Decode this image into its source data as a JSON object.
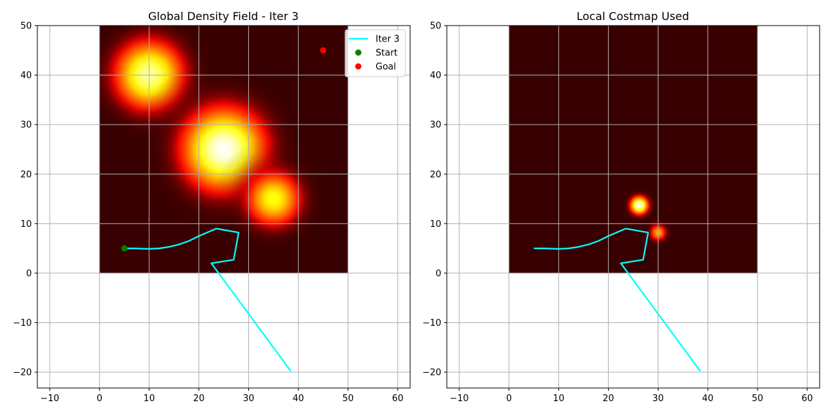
{
  "chart_data": [
    {
      "type": "heatmap",
      "title": "Global Density Field - Iter 3",
      "xlim": [
        -12.5,
        62.5
      ],
      "ylim": [
        -23.2,
        50
      ],
      "x_ticks": [
        -10,
        0,
        10,
        20,
        30,
        40,
        50,
        60
      ],
      "y_ticks": [
        -20,
        -10,
        0,
        10,
        20,
        30,
        40,
        50
      ],
      "x_tick_labels": [
        "−10",
        "0",
        "10",
        "20",
        "30",
        "40",
        "50",
        "60"
      ],
      "y_tick_labels": [
        "−20",
        "−10",
        "0",
        "10",
        "20",
        "30",
        "40",
        "50"
      ],
      "grid": true,
      "colormap": "hot",
      "field_extent": {
        "x": [
          0,
          50
        ],
        "y": [
          0,
          50
        ]
      },
      "field_blobs": [
        {
          "x": 10,
          "y": 40,
          "peak": 0.9,
          "sigma": 5
        },
        {
          "x": 25,
          "y": 25,
          "peak": 1.0,
          "sigma": 6
        },
        {
          "x": 35,
          "y": 15,
          "peak": 0.75,
          "sigma": 4
        }
      ],
      "series": [
        {
          "name": "Iter 3",
          "type": "line",
          "color": "#00ffff",
          "x": [
            5,
            7,
            10,
            12,
            14,
            16,
            18,
            20,
            23.5,
            28,
            27,
            22.5,
            38.5
          ],
          "y": [
            5,
            5,
            4.9,
            5,
            5.3,
            5.8,
            6.5,
            7.5,
            9,
            8.2,
            2.7,
            2,
            -19.8
          ]
        },
        {
          "name": "Start",
          "type": "scatter",
          "color": "#008000",
          "x": [
            5
          ],
          "y": [
            5
          ]
        },
        {
          "name": "Goal",
          "type": "scatter",
          "color": "#ff0000",
          "x": [
            45
          ],
          "y": [
            45
          ]
        }
      ],
      "legend": {
        "placement": "top-right",
        "entries": [
          "Iter 3",
          "Start",
          "Goal"
        ]
      }
    },
    {
      "type": "heatmap",
      "title": "Local Costmap Used",
      "xlim": [
        -12.5,
        62.5
      ],
      "ylim": [
        -23.2,
        50
      ],
      "x_ticks": [
        -10,
        0,
        10,
        20,
        30,
        40,
        50,
        60
      ],
      "y_ticks": [
        -20,
        -10,
        0,
        10,
        20,
        30,
        40,
        50
      ],
      "x_tick_labels": [
        "−10",
        "0",
        "10",
        "20",
        "30",
        "40",
        "50",
        "60"
      ],
      "y_tick_labels": [
        "−20",
        "−10",
        "0",
        "10",
        "20",
        "30",
        "40",
        "50"
      ],
      "grid": true,
      "colormap": "hot",
      "field_extent": {
        "x": [
          0,
          50
        ],
        "y": [
          0,
          50
        ]
      },
      "field_blobs": [
        {
          "x": 26.2,
          "y": 13.7,
          "peak": 1.0,
          "sigma": 1.3
        },
        {
          "x": 30,
          "y": 8.2,
          "peak": 0.6,
          "sigma": 1.2
        }
      ],
      "series": [
        {
          "type": "line",
          "color": "#00ffff",
          "x": [
            5,
            7,
            10,
            12,
            14,
            16,
            18,
            20,
            23.5,
            28,
            27,
            22.5,
            38.5
          ],
          "y": [
            5,
            5,
            4.9,
            5,
            5.3,
            5.8,
            6.5,
            7.5,
            9,
            8.2,
            2.7,
            2,
            -19.8
          ]
        }
      ]
    }
  ]
}
